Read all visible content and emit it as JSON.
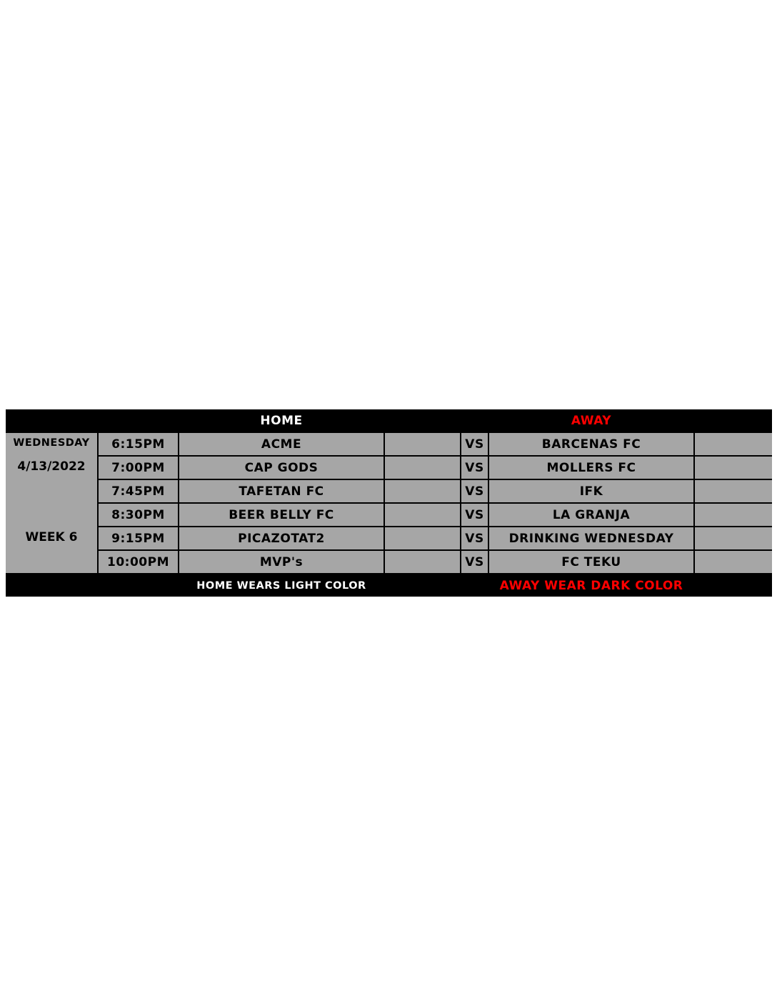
{
  "header": {
    "home": "HOME",
    "away": "AWAY"
  },
  "day": "WEDNESDAY",
  "date": "4/13/2022",
  "week": "WEEK 6",
  "vs_label": "VS",
  "games": [
    {
      "time": "6:15PM",
      "home": "ACME",
      "away": "BARCENAS FC"
    },
    {
      "time": "7:00PM",
      "home": "CAP GODS",
      "away": "MOLLERS FC"
    },
    {
      "time": "7:45PM",
      "home": "TAFETAN FC",
      "away": "IFK"
    },
    {
      "time": "8:30PM",
      "home": "BEER BELLY FC",
      "away": "LA GRANJA"
    },
    {
      "time": "9:15PM",
      "home": "PICAZOTAT2",
      "away": "DRINKING WEDNESDAY"
    },
    {
      "time": "10:00PM",
      "home": "MVP's",
      "away": "FC TEKU"
    }
  ],
  "footer": {
    "home_note": "HOME WEARS LIGHT COLOR",
    "away_note": "AWAY WEAR DARK COLOR"
  },
  "colors": {
    "cell": "#a6a6a6",
    "away_accent": "#ff0000",
    "border": "#000000"
  }
}
